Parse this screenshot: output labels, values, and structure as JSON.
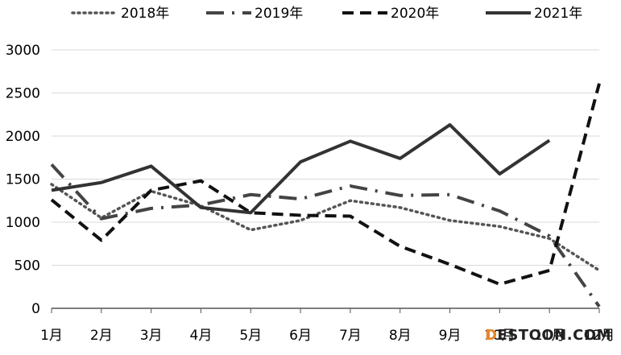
{
  "chart_data": {
    "type": "line",
    "categories": [
      "1月",
      "2月",
      "3月",
      "4月",
      "5月",
      "6月",
      "7月",
      "8月",
      "9月",
      "10月",
      "11月",
      "12月"
    ],
    "ylim": [
      0,
      3000
    ],
    "yticks": [
      0,
      500,
      1000,
      1500,
      2000,
      2500,
      3000
    ],
    "grid": true,
    "legend_position": "top",
    "series": [
      {
        "name": "2018年",
        "style": "dotted",
        "color": "#555555",
        "values": [
          1440,
          1050,
          1360,
          1190,
          910,
          1020,
          1250,
          1170,
          1020,
          950,
          810,
          440
        ]
      },
      {
        "name": "2019年",
        "style": "dash-dot",
        "color": "#444444",
        "values": [
          1670,
          1040,
          1160,
          1200,
          1320,
          1270,
          1420,
          1310,
          1320,
          1130,
          840,
          20
        ]
      },
      {
        "name": "2020年",
        "style": "dashed",
        "color": "#111111",
        "values": [
          1260,
          790,
          1370,
          1480,
          1110,
          1080,
          1070,
          720,
          510,
          280,
          440,
          2610
        ]
      },
      {
        "name": "2021年",
        "style": "solid",
        "color": "#333333",
        "values": [
          1370,
          1460,
          1650,
          1170,
          1110,
          1700,
          1940,
          1740,
          2130,
          1560,
          1950,
          null
        ]
      }
    ]
  },
  "watermark": {
    "first": "D",
    "rest": "ESTOON.COM"
  }
}
